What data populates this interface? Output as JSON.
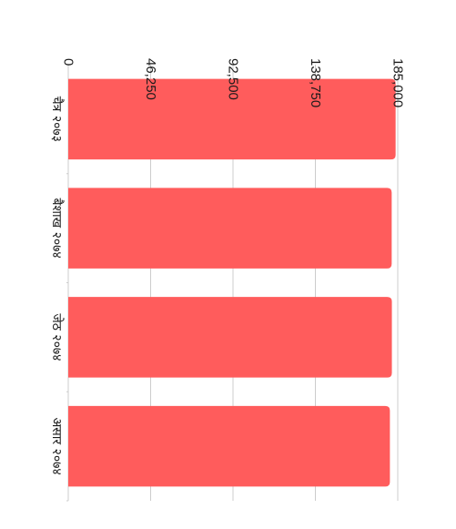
{
  "chart_data": {
    "type": "bar",
    "orientation": "horizontal",
    "rotation": "90deg clockwise",
    "title": "",
    "xlabel": "",
    "ylabel": "",
    "categories": [
      "चैत्र २०७३",
      "बैशाख २०७४",
      "जेठ २०७४",
      "असार २०७४"
    ],
    "series": [
      {
        "values": [
          183800,
          181600,
          181700,
          180600
        ],
        "color": "#ff5c5c"
      }
    ],
    "ticks": [
      "0",
      "46,250",
      "92,500",
      "138,750",
      "185,000"
    ],
    "tick_values": [
      0,
      46250,
      92500,
      138750,
      185000
    ],
    "xlim": [
      0,
      185000
    ],
    "grid": true,
    "grid_color": "#cccccc",
    "legend": "none"
  }
}
